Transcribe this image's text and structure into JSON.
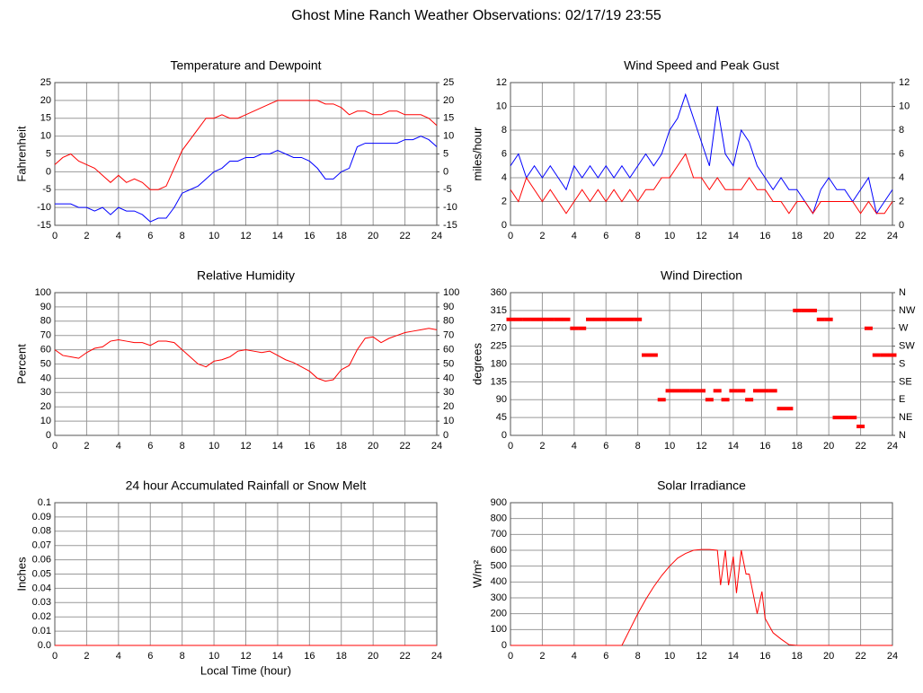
{
  "title": "Ghost Mine Ranch Weather Observations: 02/17/19 23:55",
  "chart_data": [
    {
      "type": "line",
      "title": "Temperature and Dewpoint",
      "y_label": "Fahrenheit",
      "x": [
        0,
        0.5,
        1,
        1.5,
        2,
        2.5,
        3,
        3.5,
        4,
        4.5,
        5,
        5.5,
        6,
        6.5,
        7,
        7.5,
        8,
        8.5,
        9,
        9.5,
        10,
        10.5,
        11,
        11.5,
        12,
        12.5,
        13,
        13.5,
        14,
        14.5,
        15,
        15.5,
        16,
        16.5,
        17,
        17.5,
        18,
        18.5,
        19,
        19.5,
        20,
        20.5,
        21,
        21.5,
        22,
        22.5,
        23,
        23.5,
        24
      ],
      "series": [
        {
          "color": "#ff0000",
          "values": [
            2,
            4,
            5,
            3,
            2,
            1,
            -1,
            -3,
            -1,
            -3,
            -2,
            -3,
            -5,
            -5,
            -4,
            1,
            6,
            9,
            12,
            15,
            15,
            16,
            15,
            15,
            16,
            17,
            18,
            19,
            20,
            20,
            20,
            20,
            20,
            20,
            19,
            19,
            18,
            16,
            17,
            17,
            16,
            16,
            17,
            17,
            16,
            16,
            16,
            15,
            13
          ]
        },
        {
          "color": "#0000ff",
          "values": [
            -9,
            -9,
            -9,
            -10,
            -10,
            -11,
            -10,
            -12,
            -10,
            -11,
            -11,
            -12,
            -14,
            -13,
            -13,
            -10,
            -6,
            -5,
            -4,
            -2,
            0,
            1,
            3,
            3,
            4,
            4,
            5,
            5,
            6,
            5,
            4,
            4,
            3,
            1,
            -2,
            -2,
            0,
            1,
            7,
            8,
            8,
            8,
            8,
            8,
            9,
            9,
            10,
            9,
            7
          ]
        }
      ],
      "xlim": [
        0,
        24
      ],
      "xticks": [
        0,
        2,
        4,
        6,
        8,
        10,
        12,
        14,
        16,
        18,
        20,
        22,
        24
      ],
      "ylim": [
        -15,
        25
      ],
      "yticks": [
        -15,
        -10,
        -5,
        0,
        5,
        10,
        15,
        20,
        25
      ],
      "y2lim": [
        -15,
        25
      ],
      "y2ticks": [
        -15,
        -10,
        -5,
        0,
        5,
        10,
        15,
        20,
        25
      ],
      "grid": true
    },
    {
      "type": "line",
      "title": "Wind Speed and Peak Gust",
      "y_label": "miles/hour",
      "x": [
        0,
        0.5,
        1,
        1.5,
        2,
        2.5,
        3,
        3.5,
        4,
        4.5,
        5,
        5.5,
        6,
        6.5,
        7,
        7.5,
        8,
        8.5,
        9,
        9.5,
        10,
        10.5,
        11,
        11.5,
        12,
        12.5,
        13,
        13.5,
        14,
        14.5,
        15,
        15.5,
        16,
        16.5,
        17,
        17.5,
        18,
        18.5,
        19,
        19.5,
        20,
        20.5,
        21,
        21.5,
        22,
        22.5,
        23,
        23.5,
        24
      ],
      "series": [
        {
          "color": "#0000ff",
          "values": [
            5,
            6,
            4,
            5,
            4,
            5,
            4,
            3,
            5,
            4,
            5,
            4,
            5,
            4,
            5,
            4,
            5,
            6,
            5,
            6,
            8,
            9,
            11,
            9,
            7,
            5,
            10,
            6,
            5,
            8,
            7,
            5,
            4,
            3,
            4,
            3,
            3,
            2,
            1,
            3,
            4,
            3,
            3,
            2,
            3,
            4,
            1,
            2,
            3
          ]
        },
        {
          "color": "#ff0000",
          "values": [
            3,
            2,
            4,
            3,
            2,
            3,
            2,
            1,
            2,
            3,
            2,
            3,
            2,
            3,
            2,
            3,
            2,
            3,
            3,
            4,
            4,
            5,
            6,
            4,
            4,
            3,
            4,
            3,
            3,
            3,
            4,
            3,
            3,
            2,
            2,
            1,
            2,
            2,
            1,
            2,
            2,
            2,
            2,
            2,
            1,
            2,
            1,
            1,
            2
          ]
        }
      ],
      "xlim": [
        0,
        24
      ],
      "xticks": [
        0,
        2,
        4,
        6,
        8,
        10,
        12,
        14,
        16,
        18,
        20,
        22,
        24
      ],
      "ylim": [
        0,
        12
      ],
      "yticks": [
        0,
        2,
        4,
        6,
        8,
        10,
        12
      ],
      "y2lim": [
        0,
        12
      ],
      "y2ticks": [
        0,
        2,
        4,
        6,
        8,
        10,
        12
      ],
      "grid": true
    },
    {
      "type": "line",
      "title": "Relative Humidity",
      "y_label": "Percent",
      "x": [
        0,
        0.5,
        1,
        1.5,
        2,
        2.5,
        3,
        3.5,
        4,
        4.5,
        5,
        5.5,
        6,
        6.5,
        7,
        7.5,
        8,
        8.5,
        9,
        9.5,
        10,
        10.5,
        11,
        11.5,
        12,
        12.5,
        13,
        13.5,
        14,
        14.5,
        15,
        15.5,
        16,
        16.5,
        17,
        17.5,
        18,
        18.5,
        19,
        19.5,
        20,
        20.5,
        21,
        21.5,
        22,
        22.5,
        23,
        23.5,
        24
      ],
      "series": [
        {
          "color": "#ff0000",
          "values": [
            60,
            56,
            55,
            54,
            58,
            61,
            62,
            66,
            67,
            66,
            65,
            65,
            63,
            66,
            66,
            65,
            60,
            55,
            50,
            48,
            52,
            53,
            55,
            59,
            60,
            59,
            58,
            59,
            56,
            53,
            51,
            48,
            45,
            40,
            38,
            39,
            46,
            49,
            60,
            68,
            69,
            65,
            68,
            70,
            72,
            73,
            74,
            75,
            74
          ]
        }
      ],
      "xlim": [
        0,
        24
      ],
      "xticks": [
        0,
        2,
        4,
        6,
        8,
        10,
        12,
        14,
        16,
        18,
        20,
        22,
        24
      ],
      "ylim": [
        0,
        100
      ],
      "yticks": [
        0,
        10,
        20,
        30,
        40,
        50,
        60,
        70,
        80,
        90,
        100
      ],
      "y2lim": [
        0,
        100
      ],
      "y2ticks": [
        0,
        10,
        20,
        30,
        40,
        50,
        60,
        70,
        80,
        90,
        100
      ],
      "grid": true
    },
    {
      "type": "scatter",
      "title": "Wind Direction",
      "y_label": "degrees",
      "x": [
        0,
        0.5,
        1,
        1.5,
        2,
        2.5,
        3,
        3.5,
        4,
        4.5,
        5,
        5.5,
        6,
        6.5,
        7,
        7.5,
        8,
        8.5,
        9,
        9.5,
        10,
        10.5,
        11,
        11.5,
        12,
        12.5,
        13,
        13.5,
        14,
        14.5,
        15,
        15.5,
        16,
        16.5,
        17,
        17.5,
        18,
        18.5,
        19,
        19.5,
        20,
        20.5,
        21,
        21.5,
        22,
        22.5,
        23,
        23.5,
        24
      ],
      "series": [
        {
          "color": "#ff0000",
          "values": [
            292.5,
            292.5,
            292.5,
            292.5,
            292.5,
            292.5,
            292.5,
            292.5,
            270,
            270,
            292.5,
            292.5,
            292.5,
            292.5,
            292.5,
            292.5,
            292.5,
            202.5,
            202.5,
            90,
            112.5,
            112.5,
            112.5,
            112.5,
            112.5,
            90,
            112.5,
            90,
            112.5,
            112.5,
            90,
            112.5,
            112.5,
            112.5,
            67.5,
            67.5,
            315,
            315,
            315,
            292.5,
            292.5,
            45,
            45,
            45,
            22.5,
            270,
            202.5,
            202.5,
            202.5
          ]
        }
      ],
      "xlim": [
        0,
        24
      ],
      "xticks": [
        0,
        2,
        4,
        6,
        8,
        10,
        12,
        14,
        16,
        18,
        20,
        22,
        24
      ],
      "ylim": [
        0,
        360
      ],
      "yticks": [
        0,
        45,
        90,
        135,
        180,
        225,
        270,
        315,
        360
      ],
      "y2lim": [
        0,
        360
      ],
      "y2ticks": [
        {
          "value": 0,
          "label": "N"
        },
        {
          "value": 45,
          "label": "NE"
        },
        {
          "value": 90,
          "label": "E"
        },
        {
          "value": 135,
          "label": "SE"
        },
        {
          "value": 180,
          "label": "S"
        },
        {
          "value": 225,
          "label": "SW"
        },
        {
          "value": 270,
          "label": "W"
        },
        {
          "value": 315,
          "label": "NW"
        },
        {
          "value": 360,
          "label": "N"
        }
      ],
      "grid": true
    },
    {
      "type": "line",
      "title": "24 hour Accumulated Rainfall or Snow Melt",
      "y_label": "Inches",
      "x_label": "Local Time (hour)",
      "x": [
        0,
        24
      ],
      "series": [
        {
          "color": "#ff0000",
          "values": [
            0,
            0
          ]
        }
      ],
      "xlim": [
        0,
        24
      ],
      "xticks": [
        0,
        2,
        4,
        6,
        8,
        10,
        12,
        14,
        16,
        18,
        20,
        22,
        24
      ],
      "ylim": [
        0,
        0.1
      ],
      "yticks": [
        {
          "value": 0,
          "label": "0.0"
        },
        0.01,
        0.02,
        0.03,
        0.04,
        0.05,
        0.06,
        0.07,
        0.08,
        0.09,
        0.1
      ],
      "grid": true
    },
    {
      "type": "line",
      "title": "Solar Irradiance",
      "y_label": "W/m²",
      "x": [
        0,
        7,
        7.5,
        8,
        8.5,
        9,
        9.5,
        10,
        10.5,
        11,
        11.5,
        12,
        12.5,
        13,
        13.2,
        13.5,
        13.7,
        14,
        14.2,
        14.5,
        14.8,
        15,
        15.3,
        15.5,
        15.8,
        16,
        16.5,
        17,
        17.5,
        18,
        24
      ],
      "series": [
        {
          "color": "#ff0000",
          "values": [
            0,
            0,
            100,
            200,
            290,
            370,
            440,
            500,
            550,
            580,
            600,
            605,
            605,
            600,
            380,
            600,
            380,
            560,
            330,
            600,
            450,
            450,
            300,
            200,
            340,
            170,
            80,
            40,
            5,
            0,
            0
          ]
        }
      ],
      "xlim": [
        0,
        24
      ],
      "xticks": [
        0,
        2,
        4,
        6,
        8,
        10,
        12,
        14,
        16,
        18,
        20,
        22,
        24
      ],
      "ylim": [
        0,
        900
      ],
      "yticks": [
        0,
        100,
        200,
        300,
        400,
        500,
        600,
        700,
        800,
        900
      ],
      "grid": true
    }
  ]
}
